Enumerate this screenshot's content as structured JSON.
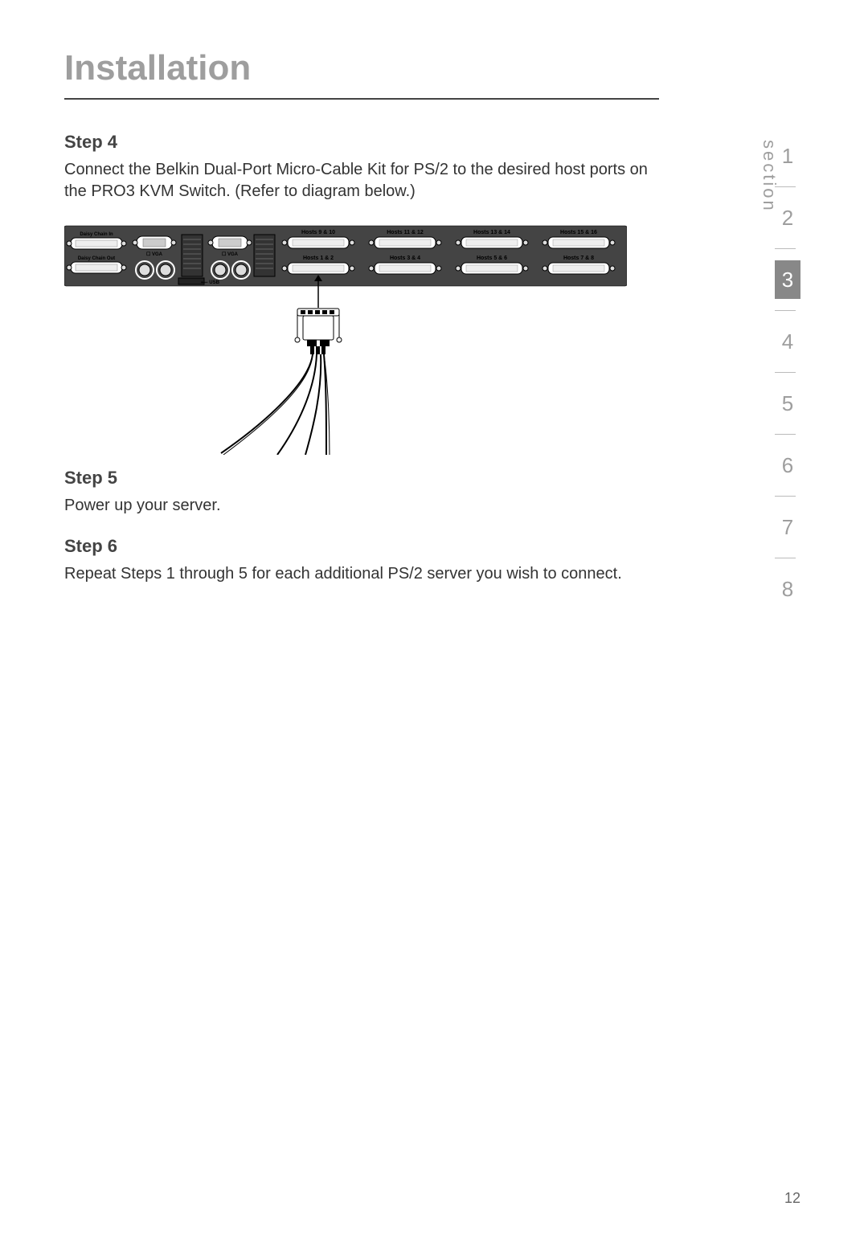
{
  "page": {
    "title": "Installation",
    "number": "12"
  },
  "section_nav": {
    "label": "section",
    "items": [
      {
        "n": "1",
        "active": false
      },
      {
        "n": "2",
        "active": false
      },
      {
        "n": "3",
        "active": true
      },
      {
        "n": "4",
        "active": false
      },
      {
        "n": "5",
        "active": false
      },
      {
        "n": "6",
        "active": false
      },
      {
        "n": "7",
        "active": false
      },
      {
        "n": "8",
        "active": false
      }
    ],
    "colors": {
      "inactive": "#9e9e9e",
      "active_bg": "#888888",
      "active_fg": "#ffffff",
      "sep": "#bbbbbb"
    }
  },
  "steps": [
    {
      "heading": "Step 4",
      "body": "Connect the Belkin Dual-Port Micro-Cable Kit for PS/2 to the desired host ports on the PRO3 KVM Switch. (Refer to diagram below.)"
    },
    {
      "heading": "Step 5",
      "body": "Power up your server."
    },
    {
      "heading": "Step 6",
      "body": "Repeat Steps 1 through 5 for each additional PS/2 server you wish to connect."
    }
  ],
  "diagram": {
    "type": "technical-illustration",
    "background": "#ffffff",
    "panel_fill": "#444444",
    "stroke": "#000000",
    "labels": {
      "daisy_in": "Daisy Chain In",
      "daisy_out": "Daisy Chain Out",
      "vga": "VGA",
      "usb": "USB",
      "host_groups_top": [
        "Hosts 9 & 10",
        "Hosts 11 & 12",
        "Hosts 13 & 14",
        "Hosts 15 & 16"
      ],
      "host_groups_bottom": [
        "Hosts 1 & 2",
        "Hosts 3 & 4",
        "Hosts 5 & 6",
        "Hosts 7 & 8"
      ]
    },
    "arrow_color": "#000000",
    "cable_stroke_width": 2
  },
  "colors": {
    "title": "#9e9e9e",
    "rule": "#444444",
    "heading": "#444444",
    "body": "#333333",
    "page_bg": "#ffffff"
  },
  "typography": {
    "title_size_pt": 33,
    "heading_size_pt": 16,
    "body_size_pt": 15,
    "nav_size_pt": 20
  }
}
